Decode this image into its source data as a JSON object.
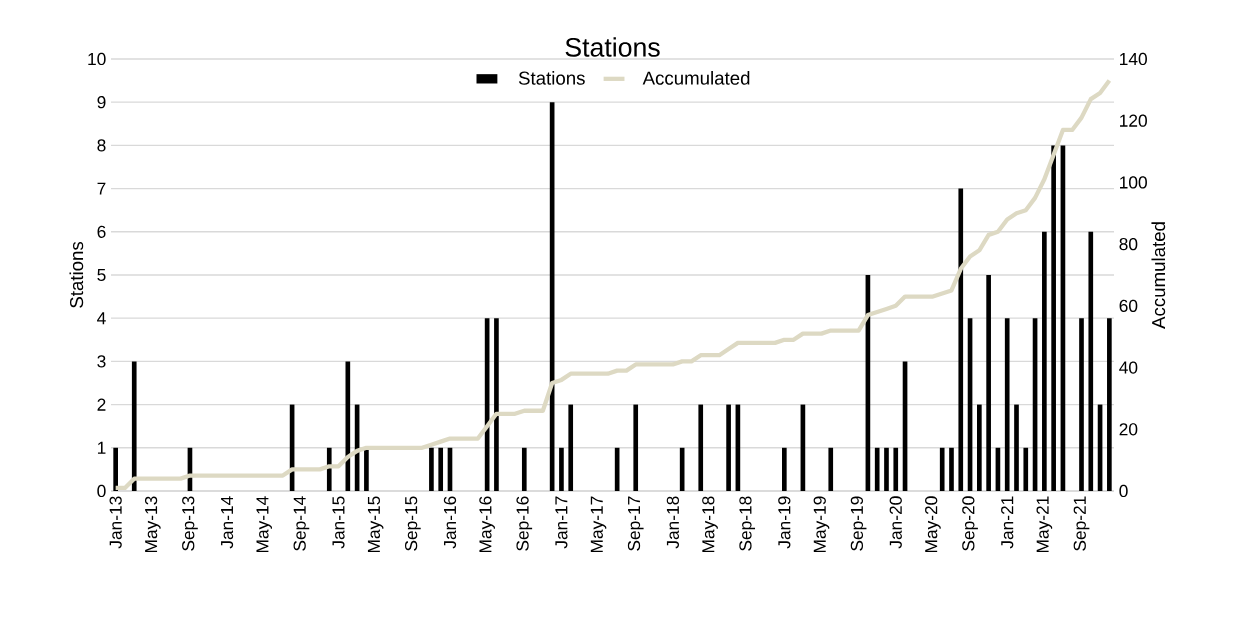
{
  "chart_data": {
    "type": "bar",
    "title": "Stations",
    "ylabel": "Stations",
    "y2label": "Accumulated",
    "categories": [
      "Jan-13",
      null,
      null,
      null,
      "May-13",
      null,
      null,
      null,
      "Sep-13",
      null,
      null,
      null,
      "Jan-14",
      null,
      null,
      null,
      "May-14",
      null,
      null,
      null,
      "Sep-14",
      null,
      null,
      null,
      "Jan-15",
      null,
      null,
      null,
      "May-15",
      null,
      null,
      null,
      "Sep-15",
      null,
      null,
      null,
      "Jan-16",
      null,
      null,
      null,
      "May-16",
      null,
      null,
      null,
      "Sep-16",
      null,
      null,
      null,
      "Jan-17",
      null,
      null,
      null,
      "May-17",
      null,
      null,
      null,
      "Sep-17",
      null,
      null,
      null,
      "Jan-18",
      null,
      null,
      null,
      "May-18",
      null,
      null,
      null,
      "Sep-18",
      null,
      null,
      null,
      "Jan-19",
      null,
      null,
      null,
      "May-19",
      null,
      null,
      null,
      "Sep-19",
      null,
      null,
      null,
      "Jan-20",
      null,
      null,
      null,
      "May-20",
      null,
      null,
      null,
      "Sep-20",
      null,
      null,
      null,
      "Jan-21",
      null,
      null,
      null,
      "May-21",
      null,
      null,
      null,
      "Sep-21",
      null,
      null,
      null
    ],
    "series": [
      {
        "name": "Stations",
        "color": "#000000",
        "values": [
          1,
          0,
          3,
          0,
          0,
          0,
          0,
          0,
          1,
          0,
          0,
          0,
          0,
          0,
          0,
          0,
          0,
          0,
          0,
          2,
          0,
          0,
          0,
          1,
          0,
          3,
          2,
          1,
          0,
          0,
          0,
          0,
          0,
          0,
          1,
          1,
          1,
          0,
          0,
          0,
          4,
          4,
          0,
          0,
          1,
          0,
          0,
          9,
          1,
          2,
          0,
          0,
          0,
          0,
          1,
          0,
          2,
          0,
          0,
          0,
          0,
          1,
          0,
          2,
          0,
          0,
          2,
          2,
          0,
          0,
          0,
          0,
          1,
          0,
          2,
          0,
          0,
          1,
          0,
          0,
          0,
          5,
          1,
          1,
          1,
          3,
          0,
          0,
          0,
          1,
          1,
          7,
          4,
          2,
          5,
          1,
          4,
          2,
          1,
          4,
          6,
          8,
          8,
          0,
          4,
          6,
          2,
          4
        ]
      },
      {
        "name": "Accumulated",
        "type": "line",
        "axis": "y2",
        "color": "#ddd9c3",
        "values": [
          1,
          1,
          4,
          4,
          4,
          4,
          4,
          4,
          5,
          5,
          5,
          5,
          5,
          5,
          5,
          5,
          5,
          5,
          5,
          7,
          7,
          7,
          7,
          8,
          8,
          11,
          13,
          14,
          14,
          14,
          14,
          14,
          14,
          14,
          15,
          16,
          17,
          17,
          17,
          17,
          21,
          25,
          25,
          25,
          26,
          26,
          26,
          35,
          36,
          38,
          38,
          38,
          38,
          38,
          39,
          39,
          41,
          41,
          41,
          41,
          41,
          42,
          42,
          44,
          44,
          44,
          46,
          48,
          48,
          48,
          48,
          48,
          49,
          49,
          51,
          51,
          51,
          52,
          52,
          52,
          52,
          57,
          58,
          59,
          60,
          63,
          63,
          63,
          63,
          64,
          65,
          72,
          76,
          78,
          83,
          84,
          88,
          90,
          91,
          95,
          101,
          109,
          117,
          117,
          121,
          127,
          129,
          133
        ]
      }
    ],
    "ylim": [
      0,
      10
    ],
    "yticks": [
      0,
      1,
      2,
      3,
      4,
      5,
      6,
      7,
      8,
      9,
      10
    ],
    "y2lim": [
      0,
      140
    ],
    "y2ticks": [
      0,
      20,
      40,
      60,
      80,
      100,
      120,
      140
    ],
    "grid": "y",
    "legend": "top",
    "marker": "none",
    "line_style": "solid"
  }
}
